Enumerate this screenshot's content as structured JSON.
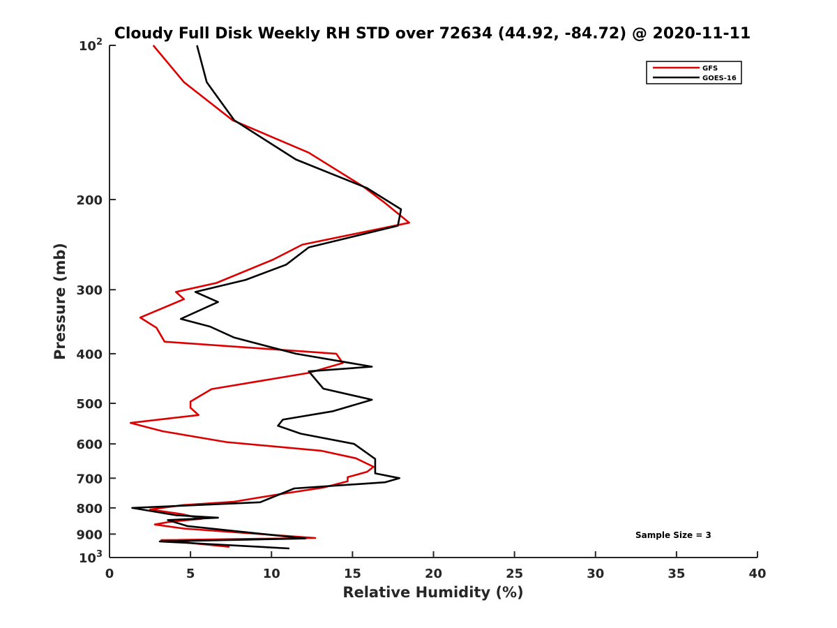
{
  "chart_data": {
    "type": "line",
    "title": "Cloudy Full Disk Weekly RH STD over 72634 (44.92, -84.72) @ 2020-11-11",
    "xlabel": "Relative Humidity (%)",
    "ylabel": "Pressure (mb)",
    "xlim": [
      0,
      40
    ],
    "ylim": [
      100,
      1000
    ],
    "y_scale": "log",
    "y_reversed": true,
    "grid": false,
    "legend_position": "top-right",
    "x_ticks": [
      "0",
      "5",
      "10",
      "15",
      "20",
      "25",
      "30",
      "35",
      "40"
    ],
    "y_ticks": [
      {
        "value": 100,
        "label": "10",
        "sup": "2"
      },
      {
        "value": 200,
        "label": "200",
        "sup": ""
      },
      {
        "value": 300,
        "label": "300",
        "sup": ""
      },
      {
        "value": 400,
        "label": "400",
        "sup": ""
      },
      {
        "value": 500,
        "label": "500",
        "sup": ""
      },
      {
        "value": 600,
        "label": "600",
        "sup": ""
      },
      {
        "value": 700,
        "label": "700",
        "sup": ""
      },
      {
        "value": 800,
        "label": "800",
        "sup": ""
      },
      {
        "value": 900,
        "label": "900",
        "sup": ""
      },
      {
        "value": 1000,
        "label": "10",
        "sup": "3"
      }
    ],
    "series": [
      {
        "name": "GFS",
        "color": "#dd0000",
        "x": [
          2.7,
          4.6,
          7.6,
          12.3,
          15.7,
          17.0,
          18.5,
          11.9,
          10.1,
          6.6,
          4.1,
          4.6,
          1.9,
          2.9,
          3.4,
          14.0,
          14.4,
          12.3,
          6.3,
          5.0,
          5.0,
          5.5,
          1.3,
          3.3,
          7.2,
          13.1,
          15.2,
          16.3,
          15.9,
          14.7,
          14.7,
          13.2,
          10.2,
          7.7,
          4.5,
          2.5,
          4.5,
          5.7,
          3.7,
          2.8,
          4.6,
          12.7,
          3.2,
          7.4
        ],
        "y": [
          100,
          118,
          140,
          162,
          189,
          203,
          222,
          245,
          262,
          291,
          303,
          313,
          340,
          356,
          379,
          400,
          417,
          436,
          469,
          496,
          510,
          527,
          546,
          567,
          595,
          619,
          640,
          665,
          680,
          697,
          710,
          730,
          755,
          778,
          790,
          806,
          823,
          840,
          852,
          862,
          878,
          916,
          925,
          953
        ]
      },
      {
        "name": "GOES-16",
        "color": "#000000",
        "x": [
          5.4,
          6.0,
          7.7,
          11.5,
          15.9,
          18.0,
          17.8,
          12.3,
          10.9,
          8.4,
          5.3,
          6.7,
          4.4,
          6.2,
          7.7,
          11.5,
          16.2,
          12.3,
          13.2,
          16.2,
          13.8,
          10.7,
          10.4,
          11.8,
          15.1,
          16.4,
          16.4,
          17.9,
          17.0,
          11.4,
          9.3,
          1.4,
          4.1,
          6.7,
          3.6,
          4.8,
          12.1,
          3.1,
          11.1
        ],
        "y": [
          100,
          118,
          140,
          167,
          190,
          209,
          225,
          248,
          268,
          287,
          303,
          317,
          342,
          354,
          372,
          400,
          424,
          433,
          468,
          492,
          518,
          538,
          553,
          573,
          600,
          642,
          685,
          700,
          713,
          733,
          780,
          800,
          827,
          836,
          845,
          868,
          918,
          930,
          960
        ]
      }
    ],
    "annotations": [
      "Sample Size = 3"
    ]
  }
}
